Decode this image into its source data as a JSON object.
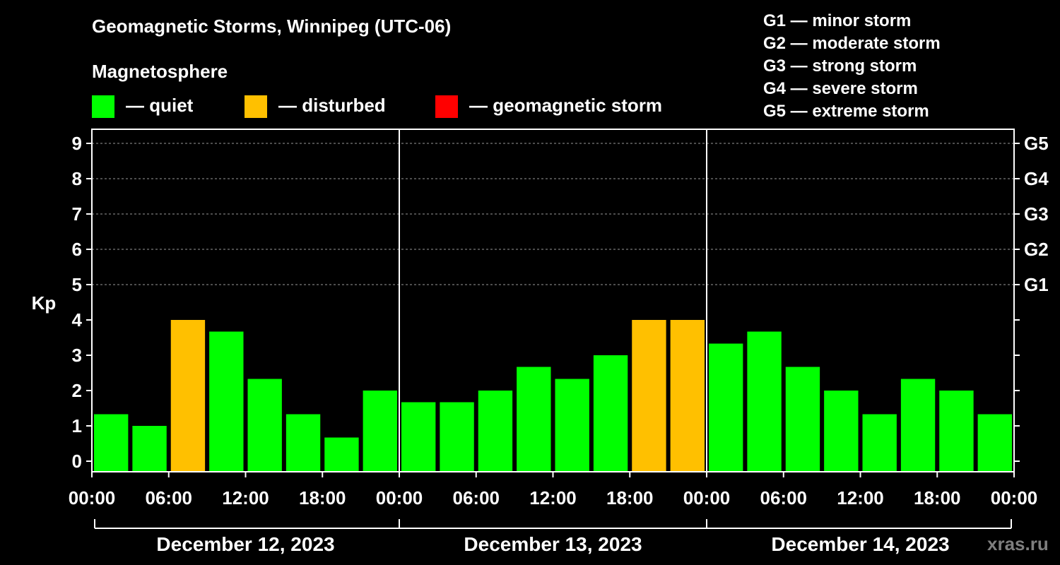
{
  "chart_data": {
    "type": "bar",
    "title": "Geomagnetic Storms, Winnipeg (UTC-06)",
    "ylabel": "Kp",
    "ylim": [
      -0.3,
      9.4
    ],
    "y_ticks": [
      0,
      1,
      2,
      3,
      4,
      5,
      6,
      7,
      8,
      9
    ],
    "right_axis_ticks": [
      {
        "kp": 5,
        "label": "G1"
      },
      {
        "kp": 6,
        "label": "G2"
      },
      {
        "kp": 7,
        "label": "G3"
      },
      {
        "kp": 8,
        "label": "G4"
      },
      {
        "kp": 9,
        "label": "G5"
      }
    ],
    "x_tick_labels": [
      "00:00",
      "06:00",
      "12:00",
      "18:00",
      "00:00",
      "06:00",
      "12:00",
      "18:00",
      "00:00",
      "06:00",
      "12:00",
      "18:00",
      "00:00"
    ],
    "days": [
      "December 12, 2023",
      "December 13, 2023",
      "December 14, 2023"
    ],
    "interval_hours": 3,
    "values": [
      1.33,
      1.0,
      4.0,
      3.67,
      2.33,
      1.33,
      0.67,
      2.0,
      1.67,
      1.67,
      2.0,
      2.67,
      2.33,
      3.0,
      4.0,
      4.0,
      3.33,
      3.67,
      2.67,
      2.0,
      1.33,
      2.33,
      2.0,
      1.33
    ],
    "status": [
      "quiet",
      "quiet",
      "disturbed",
      "quiet",
      "quiet",
      "quiet",
      "quiet",
      "quiet",
      "quiet",
      "quiet",
      "quiet",
      "quiet",
      "quiet",
      "quiet",
      "disturbed",
      "disturbed",
      "quiet",
      "quiet",
      "quiet",
      "quiet",
      "quiet",
      "quiet",
      "quiet",
      "quiet"
    ],
    "grid": "dashed horizontal at 5-9",
    "legend_title": "Magnetosphere",
    "legend": [
      {
        "key": "quiet",
        "label": "— quiet",
        "color": "#00ff00"
      },
      {
        "key": "disturbed",
        "label": "— disturbed",
        "color": "#ffc000"
      },
      {
        "key": "storm",
        "label": "— geomagnetic storm",
        "color": "#ff0000"
      }
    ],
    "storm_levels": [
      "G1 — minor storm",
      "G2 — moderate storm",
      "G3 — strong storm",
      "G4 — severe storm",
      "G5 — extreme storm"
    ]
  },
  "watermark": "xras.ru"
}
